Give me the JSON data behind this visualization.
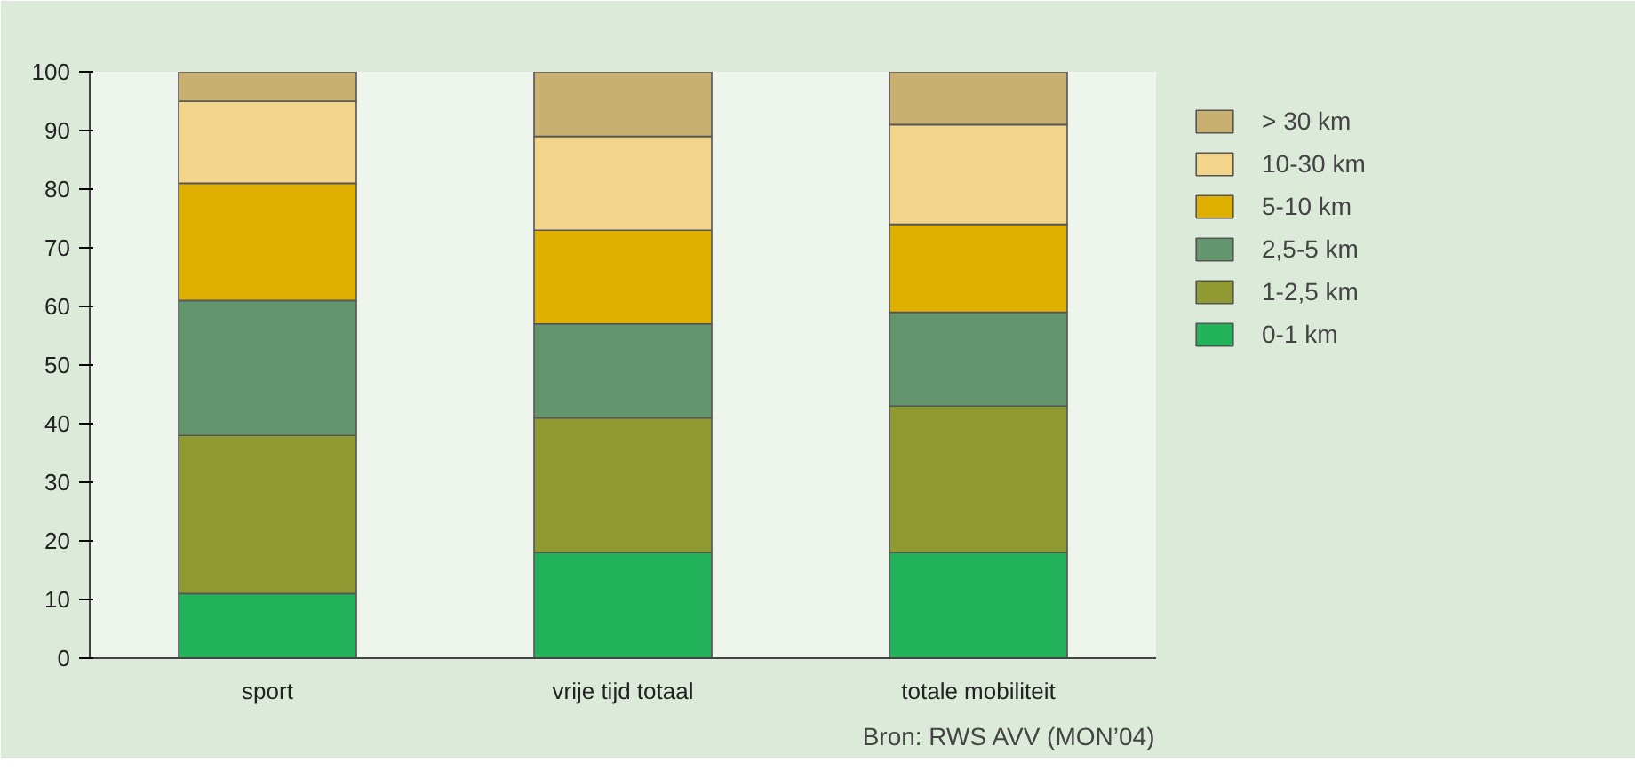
{
  "chart_data": {
    "type": "bar",
    "stacked": true,
    "categories": [
      "sport",
      "vrije tijd totaal",
      "totale mobiliteit"
    ],
    "series": [
      {
        "name": "0-1 km",
        "color": "#22b35a",
        "values": [
          11,
          18,
          18
        ]
      },
      {
        "name": "1-2,5 km",
        "color": "#8f9a32",
        "values": [
          27,
          23,
          25
        ]
      },
      {
        "name": "2,5-5 km",
        "color": "#64966e",
        "values": [
          23,
          16,
          16
        ]
      },
      {
        "name": "5-10 km",
        "color": "#e0b000",
        "values": [
          20,
          16,
          15
        ]
      },
      {
        "name": "10-30 km",
        "color": "#f2d58a",
        "values": [
          14,
          16,
          17
        ]
      },
      {
        "name": "> 30 km",
        "color": "#c8b070",
        "values": [
          5,
          11,
          9
        ]
      }
    ],
    "ylim": [
      0,
      100
    ],
    "yticks": [
      0,
      10,
      20,
      30,
      40,
      50,
      60,
      70,
      80,
      90,
      100
    ],
    "grid": false,
    "legend": "right",
    "annotations": [
      "Bron: RWS AVV (MON’04)"
    ]
  }
}
